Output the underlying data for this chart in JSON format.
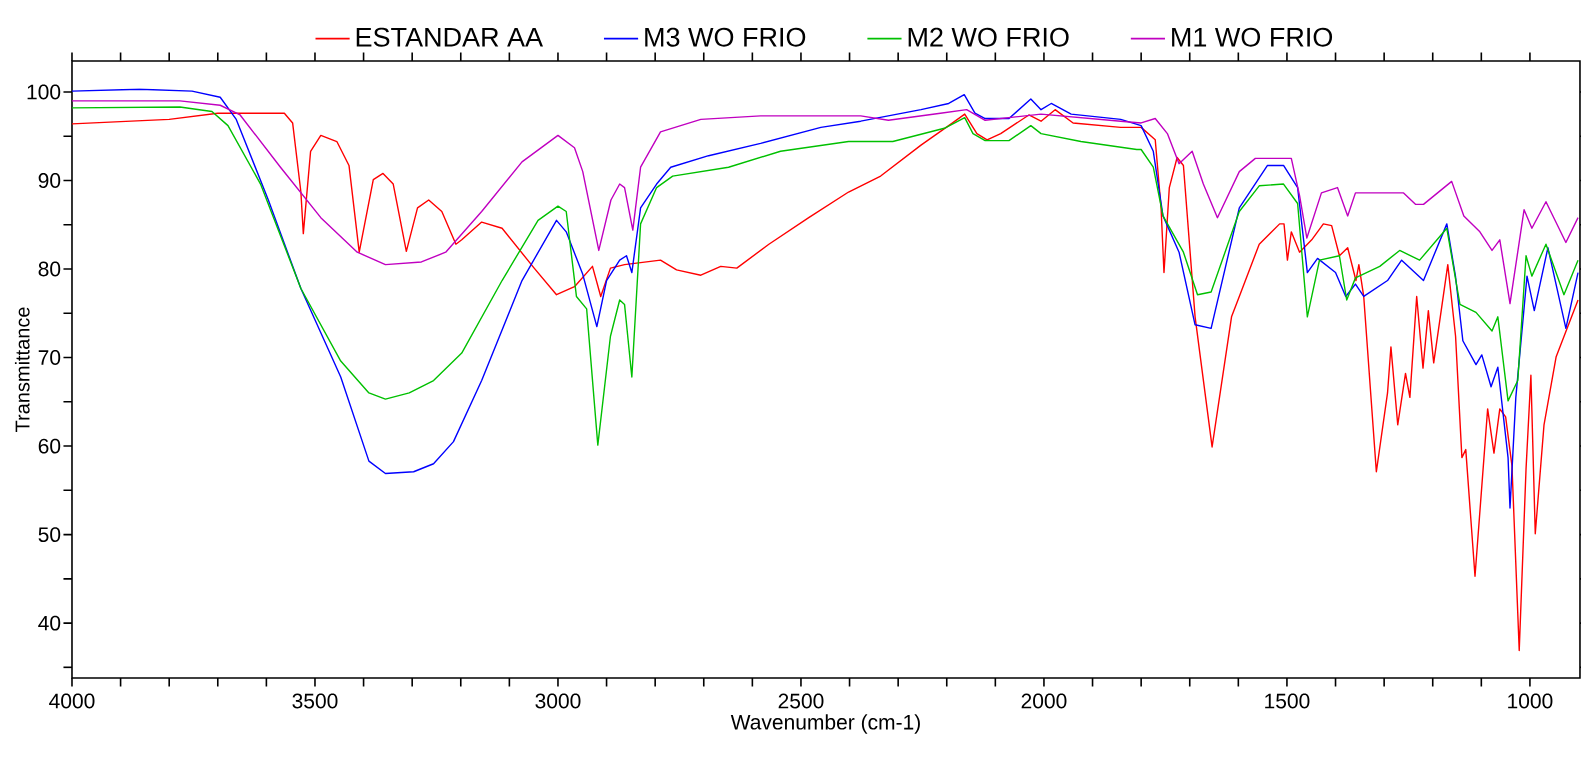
{
  "chart_data": {
    "type": "line",
    "xlabel": "Wavenumber (cm-1)",
    "ylabel": "Transmittance",
    "legend": "top",
    "xlim": [
      4000,
      897
    ],
    "ylim": [
      33.8,
      103.5
    ],
    "xticks": [
      {
        "value": 1000,
        "label": "1000"
      },
      {
        "value": 1100,
        "label": null
      },
      {
        "value": 1200,
        "label": null
      },
      {
        "value": 1300,
        "label": null
      },
      {
        "value": 1400,
        "label": null
      },
      {
        "value": 1500,
        "label": "1500"
      },
      {
        "value": 1600,
        "label": null
      },
      {
        "value": 1700,
        "label": null
      },
      {
        "value": 1800,
        "label": null
      },
      {
        "value": 1900,
        "label": null
      },
      {
        "value": 2000,
        "label": "2000"
      },
      {
        "value": 2100,
        "label": null
      },
      {
        "value": 2200,
        "label": null
      },
      {
        "value": 2300,
        "label": null
      },
      {
        "value": 2400,
        "label": null
      },
      {
        "value": 2500,
        "label": "2500"
      },
      {
        "value": 2600,
        "label": null
      },
      {
        "value": 2700,
        "label": null
      },
      {
        "value": 2800,
        "label": null
      },
      {
        "value": 2900,
        "label": null
      },
      {
        "value": 3000,
        "label": "3000"
      },
      {
        "value": 3100,
        "label": null
      },
      {
        "value": 3200,
        "label": null
      },
      {
        "value": 3300,
        "label": null
      },
      {
        "value": 3400,
        "label": null
      },
      {
        "value": 3500,
        "label": "3500"
      },
      {
        "value": 3600,
        "label": null
      },
      {
        "value": 3700,
        "label": null
      },
      {
        "value": 3800,
        "label": null
      },
      {
        "value": 3900,
        "label": null
      },
      {
        "value": 4000,
        "label": "4000"
      }
    ],
    "yticks": [
      {
        "value": 35,
        "label": null
      },
      40,
      {
        "value": 45,
        "label": null
      },
      50,
      {
        "value": 55,
        "label": null
      },
      60,
      {
        "value": 65,
        "label": null
      },
      70,
      {
        "value": 75,
        "label": null
      },
      80,
      {
        "value": 85,
        "label": null
      },
      90,
      {
        "value": 95,
        "label": null
      },
      100
    ],
    "series": [
      {
        "name": "ESTANDAR AA",
        "color": "#ff0000",
        "x": [
          4000,
          3800,
          3700,
          3563,
          3546,
          3529,
          3524,
          3509,
          3488,
          3455,
          3430,
          3409,
          3380,
          3360,
          3339,
          3312,
          3289,
          3266,
          3239,
          3210,
          3198,
          3157,
          3115,
          3049,
          3003,
          2966,
          2929,
          2912,
          2892,
          2863,
          2789,
          2756,
          2706,
          2665,
          2632,
          2566,
          2484,
          2402,
          2336,
          2253,
          2196,
          2163,
          2138,
          2117,
          2089,
          2031,
          2006,
          1977,
          1940,
          1842,
          1800,
          1771,
          1759,
          1753,
          1742,
          1726,
          1713,
          1689,
          1654,
          1614,
          1598,
          1557,
          1515,
          1506,
          1499,
          1491,
          1474,
          1449,
          1425,
          1408,
          1392,
          1375,
          1358,
          1352,
          1342,
          1316,
          1293,
          1286,
          1272,
          1256,
          1247,
          1233,
          1220,
          1209,
          1198,
          1169,
          1153,
          1140,
          1132,
          1113,
          1087,
          1074,
          1062,
          1050,
          1037,
          1022,
          1008,
          998,
          989,
          971,
          946,
          901
        ],
        "values": [
          96.4,
          96.9,
          97.6,
          97.6,
          96.5,
          88.7,
          84.0,
          93.3,
          95.1,
          94.4,
          91.7,
          81.9,
          90.1,
          90.8,
          89.6,
          82.0,
          86.9,
          87.8,
          86.5,
          82.8,
          83.3,
          85.3,
          84.6,
          80.1,
          77.1,
          78.0,
          80.3,
          76.9,
          80.1,
          80.5,
          81.0,
          79.9,
          79.3,
          80.3,
          80.1,
          82.8,
          85.8,
          88.7,
          90.5,
          94.0,
          96.2,
          97.5,
          95.3,
          94.6,
          95.3,
          97.4,
          96.7,
          98.0,
          96.5,
          96.0,
          96.0,
          94.6,
          86.9,
          79.6,
          89.2,
          92.6,
          91.7,
          74.6,
          59.9,
          74.6,
          76.9,
          82.8,
          85.1,
          85.1,
          81.0,
          84.2,
          81.9,
          83.3,
          85.1,
          84.9,
          81.5,
          82.4,
          78.7,
          80.5,
          76.9,
          57.1,
          66.0,
          71.2,
          62.4,
          68.2,
          65.5,
          76.9,
          68.8,
          75.3,
          69.4,
          80.5,
          72.4,
          58.7,
          59.6,
          45.3,
          64.2,
          59.2,
          64.2,
          63.3,
          57.8,
          36.9,
          57.4,
          68.0,
          50.1,
          62.4,
          70.1,
          76.5
        ]
      },
      {
        "name": "M3 WO FRIO",
        "color": "#0000ff",
        "x": [
          4000,
          3861,
          3753,
          3695,
          3662,
          3596,
          3529,
          3447,
          3389,
          3355,
          3297,
          3256,
          3215,
          3157,
          3074,
          3003,
          2983,
          2949,
          2920,
          2900,
          2873,
          2859,
          2848,
          2830,
          2797,
          2768,
          2690,
          2583,
          2459,
          2377,
          2253,
          2196,
          2164,
          2142,
          2121,
          2072,
          2027,
          2006,
          1985,
          1944,
          1842,
          1800,
          1775,
          1755,
          1722,
          1689,
          1656,
          1598,
          1540,
          1507,
          1478,
          1458,
          1437,
          1400,
          1379,
          1359,
          1342,
          1293,
          1264,
          1219,
          1171,
          1153,
          1138,
          1111,
          1099,
          1080,
          1066,
          1045,
          1041,
          1029,
          1006,
          991,
          963,
          926,
          901
        ],
        "values": [
          100.1,
          100.3,
          100.1,
          99.4,
          96.9,
          87.8,
          77.8,
          67.8,
          58.3,
          56.9,
          57.1,
          58.0,
          60.5,
          67.4,
          78.7,
          85.5,
          84.2,
          79.4,
          73.5,
          78.7,
          81.0,
          81.5,
          79.6,
          86.9,
          89.6,
          91.5,
          92.8,
          94.2,
          96.0,
          96.7,
          98.0,
          98.7,
          99.7,
          97.6,
          97.0,
          97.0,
          99.2,
          98.0,
          98.7,
          97.5,
          96.9,
          96.2,
          93.3,
          86.0,
          81.9,
          73.7,
          73.3,
          86.9,
          91.7,
          91.7,
          89.2,
          79.6,
          81.2,
          79.6,
          76.9,
          78.3,
          76.9,
          78.7,
          81.0,
          78.7,
          85.1,
          79.1,
          71.9,
          69.2,
          70.3,
          66.7,
          68.9,
          58.7,
          53.0,
          65.5,
          79.2,
          75.3,
          82.4,
          73.3,
          79.6
        ]
      },
      {
        "name": "M2 WO FRIO",
        "color": "#00c000",
        "x": [
          4000,
          3778,
          3712,
          3679,
          3612,
          3529,
          3447,
          3389,
          3355,
          3306,
          3256,
          3198,
          3115,
          3041,
          3000,
          2983,
          2962,
          2941,
          2918,
          2892,
          2873,
          2863,
          2848,
          2830,
          2797,
          2764,
          2649,
          2542,
          2402,
          2311,
          2205,
          2163,
          2146,
          2121,
          2072,
          2027,
          2006,
          1924,
          1809,
          1800,
          1775,
          1755,
          1713,
          1684,
          1656,
          1598,
          1557,
          1507,
          1478,
          1458,
          1433,
          1392,
          1377,
          1359,
          1309,
          1268,
          1227,
          1171,
          1144,
          1111,
          1078,
          1066,
          1045,
          1025,
          1008,
          996,
          967,
          930,
          901
        ],
        "values": [
          98.2,
          98.3,
          97.8,
          96.2,
          89.6,
          77.8,
          69.6,
          66.0,
          65.3,
          66.0,
          67.4,
          70.5,
          78.7,
          85.5,
          87.1,
          86.5,
          76.9,
          75.5,
          60.1,
          72.4,
          76.5,
          76.0,
          67.8,
          85.1,
          89.2,
          90.5,
          91.5,
          93.3,
          94.4,
          94.4,
          95.9,
          97.1,
          95.3,
          94.5,
          94.5,
          96.2,
          95.3,
          94.4,
          93.5,
          93.5,
          91.5,
          86.0,
          81.9,
          77.1,
          77.4,
          86.5,
          89.4,
          89.6,
          87.4,
          74.6,
          81.0,
          81.5,
          76.5,
          79.0,
          80.3,
          82.1,
          81.0,
          84.6,
          76.0,
          75.1,
          73.0,
          74.6,
          65.1,
          67.4,
          81.5,
          79.2,
          82.8,
          77.1,
          81.0
        ]
      },
      {
        "name": "M1 WO FRIO",
        "color": "#c000c0",
        "x": [
          4000,
          3778,
          3695,
          3654,
          3571,
          3488,
          3413,
          3355,
          3281,
          3231,
          3157,
          3074,
          3000,
          2966,
          2949,
          2916,
          2891,
          2873,
          2863,
          2846,
          2830,
          2789,
          2706,
          2583,
          2377,
          2320,
          2213,
          2159,
          2121,
          2006,
          1842,
          1800,
          1771,
          1746,
          1722,
          1695,
          1672,
          1643,
          1598,
          1565,
          1491,
          1474,
          1459,
          1429,
          1396,
          1375,
          1359,
          1309,
          1260,
          1235,
          1219,
          1161,
          1136,
          1103,
          1078,
          1062,
          1041,
          1012,
          996,
          967,
          926,
          901
        ],
        "values": [
          99.0,
          99.0,
          98.5,
          97.4,
          91.5,
          85.8,
          81.9,
          80.5,
          80.8,
          81.9,
          86.5,
          92.1,
          95.1,
          93.7,
          91.0,
          82.1,
          87.8,
          89.6,
          89.2,
          84.4,
          91.5,
          95.5,
          96.9,
          97.3,
          97.3,
          96.8,
          97.6,
          98.0,
          96.8,
          97.5,
          96.7,
          96.5,
          97.0,
          95.3,
          91.9,
          93.3,
          89.6,
          85.8,
          91.0,
          92.5,
          92.5,
          88.3,
          83.5,
          88.6,
          89.2,
          86.0,
          88.6,
          88.6,
          88.6,
          87.3,
          87.3,
          89.9,
          86.0,
          84.2,
          82.1,
          83.3,
          76.1,
          86.7,
          84.6,
          87.6,
          83.0,
          85.8
        ]
      }
    ]
  }
}
